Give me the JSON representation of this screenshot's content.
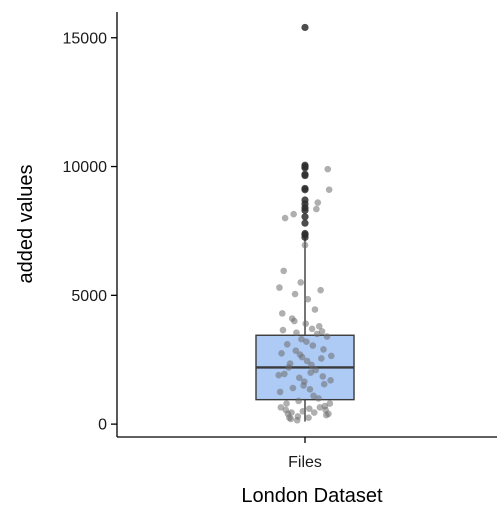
{
  "chart_data": {
    "type": "box",
    "title": "",
    "xlabel": "London Dataset",
    "ylabel": "added values",
    "categories": [
      "Files"
    ],
    "ylim": [
      -500,
      16000
    ],
    "yticks": [
      0,
      5000,
      10000,
      15000
    ],
    "grid": false,
    "legend": "none",
    "box": {
      "category": "Files",
      "whisker_low": 100,
      "q1": 950,
      "median": 2200,
      "q3": 3450,
      "whisker_high": 7250,
      "fill_color": "#aecbf5",
      "edge_color": "#3a3a3a"
    },
    "outliers": [
      7250,
      7350,
      7400,
      7800,
      8050,
      8300,
      8400,
      8550,
      8700,
      9100,
      9150,
      9650,
      9700,
      9950,
      10000,
      10050,
      15400
    ],
    "jitter_points": [
      {
        "x": -0.36,
        "y": 5300
      },
      {
        "x": -0.32,
        "y": 4300
      },
      {
        "x": -0.3,
        "y": 5950
      },
      {
        "x": -0.28,
        "y": 8000
      },
      {
        "x": -0.26,
        "y": 800
      },
      {
        "x": -0.24,
        "y": 400
      },
      {
        "x": -0.22,
        "y": 250
      },
      {
        "x": -0.2,
        "y": 200
      },
      {
        "x": -0.18,
        "y": 4100
      },
      {
        "x": -0.16,
        "y": 8150
      },
      {
        "x": -0.14,
        "y": 5050
      },
      {
        "x": -0.12,
        "y": 3550
      },
      {
        "x": -0.1,
        "y": 300
      },
      {
        "x": -0.08,
        "y": 1800
      },
      {
        "x": -0.06,
        "y": 5500
      },
      {
        "x": -0.04,
        "y": 2600
      },
      {
        "x": -0.02,
        "y": 1500
      },
      {
        "x": 0.0,
        "y": 6950
      },
      {
        "x": 0.02,
        "y": 3200
      },
      {
        "x": 0.04,
        "y": 4850
      },
      {
        "x": 0.06,
        "y": 600
      },
      {
        "x": 0.08,
        "y": 2000
      },
      {
        "x": 0.1,
        "y": 3700
      },
      {
        "x": 0.12,
        "y": 1100
      },
      {
        "x": 0.14,
        "y": 4450
      },
      {
        "x": 0.16,
        "y": 8350
      },
      {
        "x": 0.18,
        "y": 8600
      },
      {
        "x": 0.2,
        "y": 3800
      },
      {
        "x": 0.22,
        "y": 5200
      },
      {
        "x": 0.24,
        "y": 3600
      },
      {
        "x": 0.26,
        "y": 2900
      },
      {
        "x": 0.28,
        "y": 700
      },
      {
        "x": 0.3,
        "y": 350
      },
      {
        "x": 0.32,
        "y": 9900
      },
      {
        "x": 0.34,
        "y": 9100
      },
      {
        "x": 0.36,
        "y": 1700
      },
      {
        "x": -0.35,
        "y": 1250
      },
      {
        "x": -0.33,
        "y": 2750
      },
      {
        "x": -0.29,
        "y": 1950
      },
      {
        "x": -0.25,
        "y": 3100
      },
      {
        "x": -0.21,
        "y": 2350
      },
      {
        "x": -0.17,
        "y": 1400
      },
      {
        "x": -0.13,
        "y": 2850
      },
      {
        "x": -0.09,
        "y": 900
      },
      {
        "x": -0.05,
        "y": 3300
      },
      {
        "x": -0.01,
        "y": 1650
      },
      {
        "x": 0.03,
        "y": 2450
      },
      {
        "x": 0.07,
        "y": 1350
      },
      {
        "x": 0.11,
        "y": 3050
      },
      {
        "x": 0.15,
        "y": 2100
      },
      {
        "x": 0.19,
        "y": 1000
      },
      {
        "x": 0.23,
        "y": 2550
      },
      {
        "x": 0.27,
        "y": 1550
      },
      {
        "x": 0.31,
        "y": 3400
      },
      {
        "x": 0.35,
        "y": 800
      },
      {
        "x": -0.34,
        "y": 650
      },
      {
        "x": -0.27,
        "y": 550
      },
      {
        "x": -0.19,
        "y": 450
      },
      {
        "x": -0.11,
        "y": 150
      },
      {
        "x": -0.03,
        "y": 500
      },
      {
        "x": 0.05,
        "y": 250
      },
      {
        "x": 0.13,
        "y": 450
      },
      {
        "x": 0.21,
        "y": 650
      },
      {
        "x": 0.29,
        "y": 550
      },
      {
        "x": 0.33,
        "y": 400
      },
      {
        "x": -0.31,
        "y": 3650
      },
      {
        "x": -0.23,
        "y": 2200
      },
      {
        "x": -0.15,
        "y": 4000
      },
      {
        "x": -0.07,
        "y": 2700
      },
      {
        "x": 0.01,
        "y": 3900
      },
      {
        "x": 0.09,
        "y": 2300
      },
      {
        "x": 0.17,
        "y": 3500
      },
      {
        "x": 0.25,
        "y": 1850
      },
      {
        "x": -0.37,
        "y": 1900
      },
      {
        "x": 0.37,
        "y": 2650
      }
    ]
  }
}
